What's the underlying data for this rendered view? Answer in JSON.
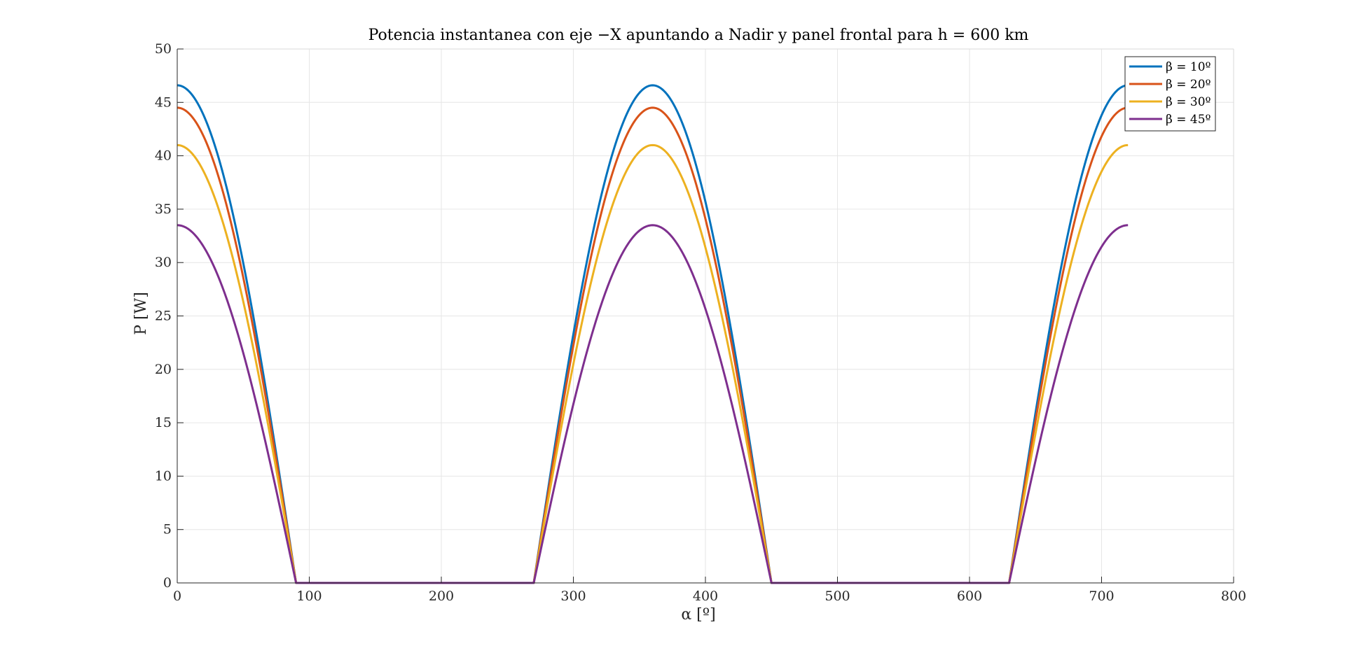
{
  "chart_data": {
    "type": "line",
    "title": "Potencia instantanea con eje −X apuntando a Nadir y panel frontal para h = 600 km",
    "xlabel": "α [º]",
    "ylabel": "P [W]",
    "xlim": [
      0,
      800
    ],
    "ylim": [
      0,
      50
    ],
    "xticks": [
      0,
      100,
      200,
      300,
      400,
      500,
      600,
      700,
      800
    ],
    "yticks": [
      0,
      5,
      10,
      15,
      20,
      25,
      30,
      35,
      40,
      45,
      50
    ],
    "grid": true,
    "legend_position": "top-right",
    "x_range": [
      0,
      720
    ],
    "shape": "peak * max(cos(alpha), 0) on alpha in degrees",
    "series": [
      {
        "name": "β = 10º",
        "peak": 46.6,
        "color": "#0072BD"
      },
      {
        "name": "β = 20º",
        "peak": 44.5,
        "color": "#D95319"
      },
      {
        "name": "β = 30º",
        "peak": 41.0,
        "color": "#EDB120"
      },
      {
        "name": "β = 45º",
        "peak": 33.5,
        "color": "#7E2F8E"
      }
    ]
  }
}
